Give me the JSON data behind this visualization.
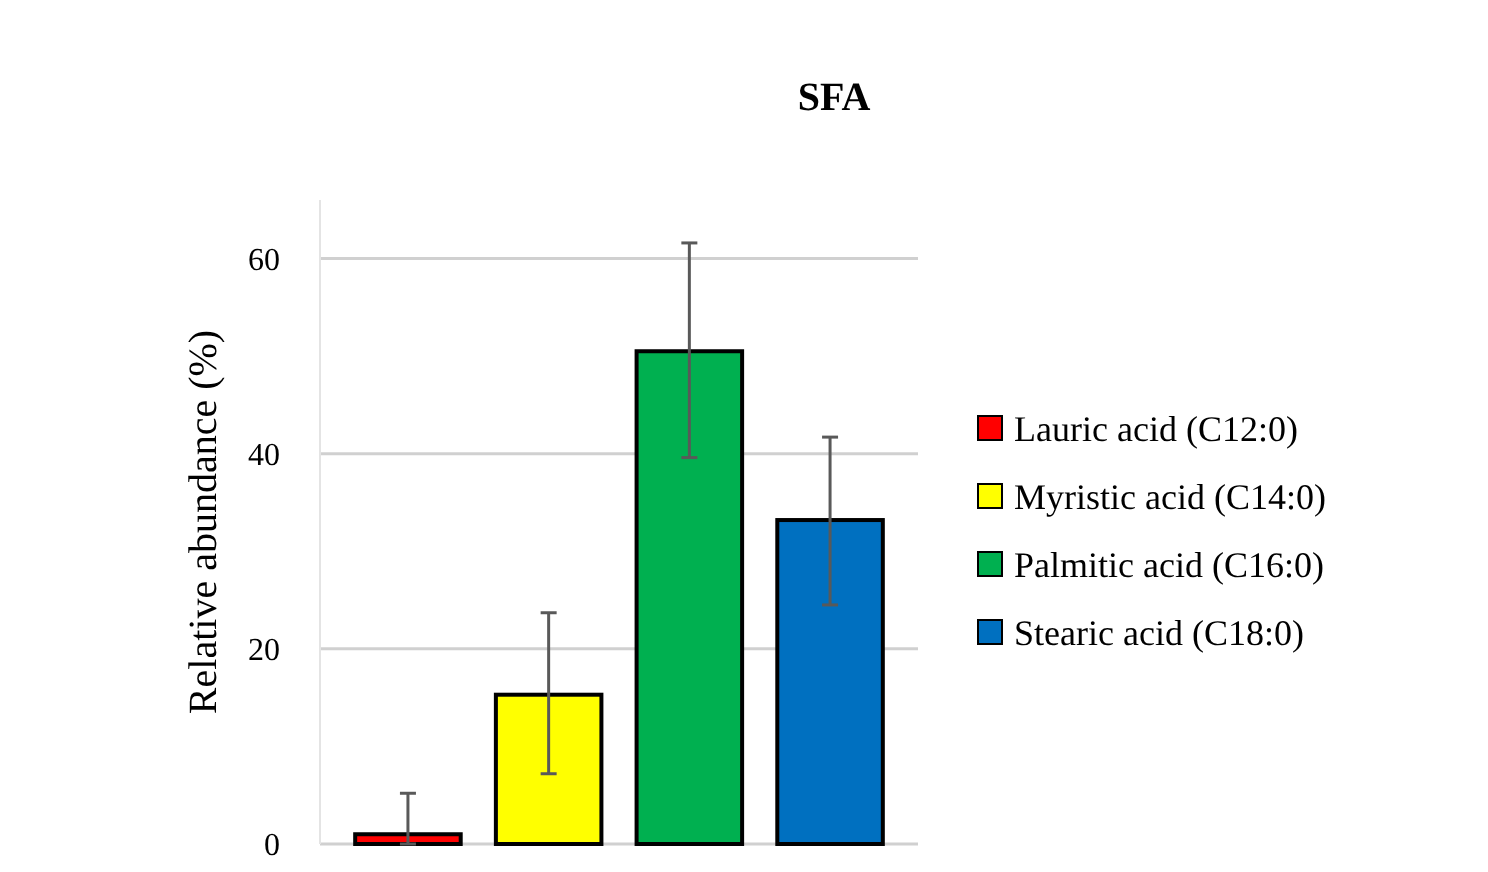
{
  "chart_data": {
    "type": "bar",
    "title": "SFA",
    "ylabel": "Relative abundance  (%)",
    "categories": [
      null,
      null,
      null,
      null
    ],
    "series": [
      {
        "name": "Lauric acid (C12:0)",
        "color": "#ff0000",
        "values": [
          1.0,
          null,
          null,
          null
        ],
        "errors": [
          [
            0,
            5.2
          ],
          null,
          null,
          null
        ]
      },
      {
        "name": "Myristic acid (C14:0)",
        "color": "#ffff00",
        "values": [
          null,
          15.3,
          null,
          null
        ],
        "errors": [
          null,
          [
            7.2,
            23.7
          ],
          null,
          null
        ]
      },
      {
        "name": "Palmitic acid (C16:0)",
        "color": "#00b050",
        "values": [
          null,
          null,
          50.5,
          null
        ],
        "errors": [
          null,
          null,
          [
            39.6,
            61.6
          ],
          null
        ]
      },
      {
        "name": "Stearic acid (C18:0)",
        "color": "#0070c0",
        "values": [
          null,
          null,
          null,
          33.2
        ],
        "errors": [
          null,
          null,
          null,
          [
            24.5,
            41.7
          ]
        ]
      }
    ],
    "ylim": [
      0,
      66
    ],
    "yticks": [
      0,
      20,
      40,
      60
    ],
    "grid": "y",
    "legend": "right"
  }
}
